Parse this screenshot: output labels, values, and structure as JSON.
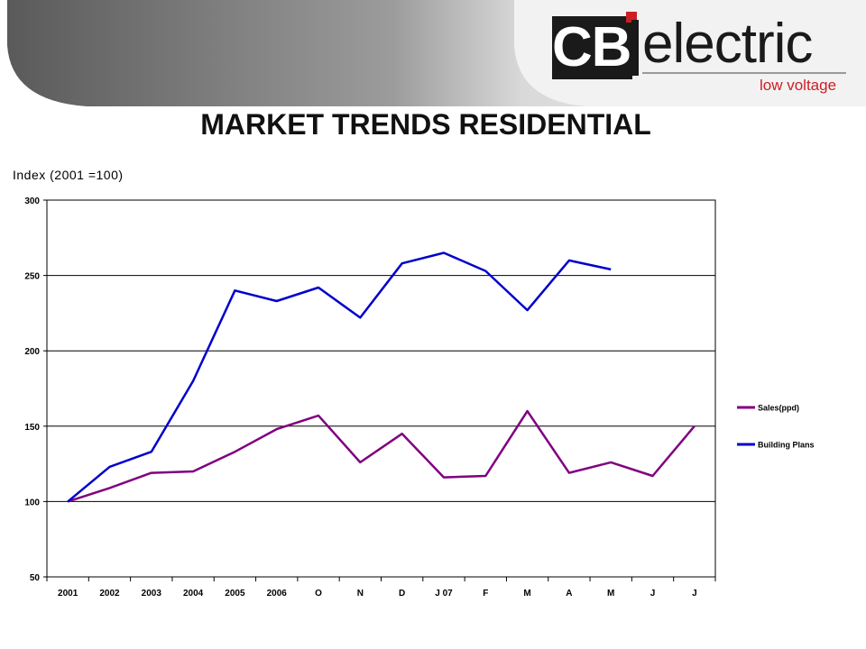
{
  "header": {
    "brand_logo": "CBi",
    "brand_word": "electric",
    "tagline": "low voltage",
    "accent_color": "#cc1f24"
  },
  "page_title": "MARKET TRENDS RESIDENTIAL",
  "chart_data": {
    "type": "line",
    "title": "",
    "ylabel": "Index (2001 =100)",
    "xlabel": "",
    "categories": [
      "2001",
      "2002",
      "2003",
      "2004",
      "2005",
      "2006",
      "O",
      "N",
      "D",
      "J 07",
      "F",
      "M",
      "A",
      "M",
      "J",
      "J"
    ],
    "ylim": [
      50,
      300
    ],
    "yticks": [
      50,
      100,
      150,
      200,
      250,
      300
    ],
    "grid": "horizontal",
    "legend_position": "right",
    "series": [
      {
        "name": "Sales(ppd)",
        "color": "#800080",
        "values": [
          100,
          109,
          119,
          120,
          133,
          148,
          157,
          126,
          145,
          116,
          117,
          160,
          119,
          126,
          117,
          150
        ]
      },
      {
        "name": "Building Plans",
        "color": "#0000cc",
        "values": [
          100,
          123,
          133,
          180,
          240,
          233,
          242,
          222,
          258,
          265,
          253,
          227,
          260,
          254,
          null,
          null
        ]
      }
    ]
  }
}
